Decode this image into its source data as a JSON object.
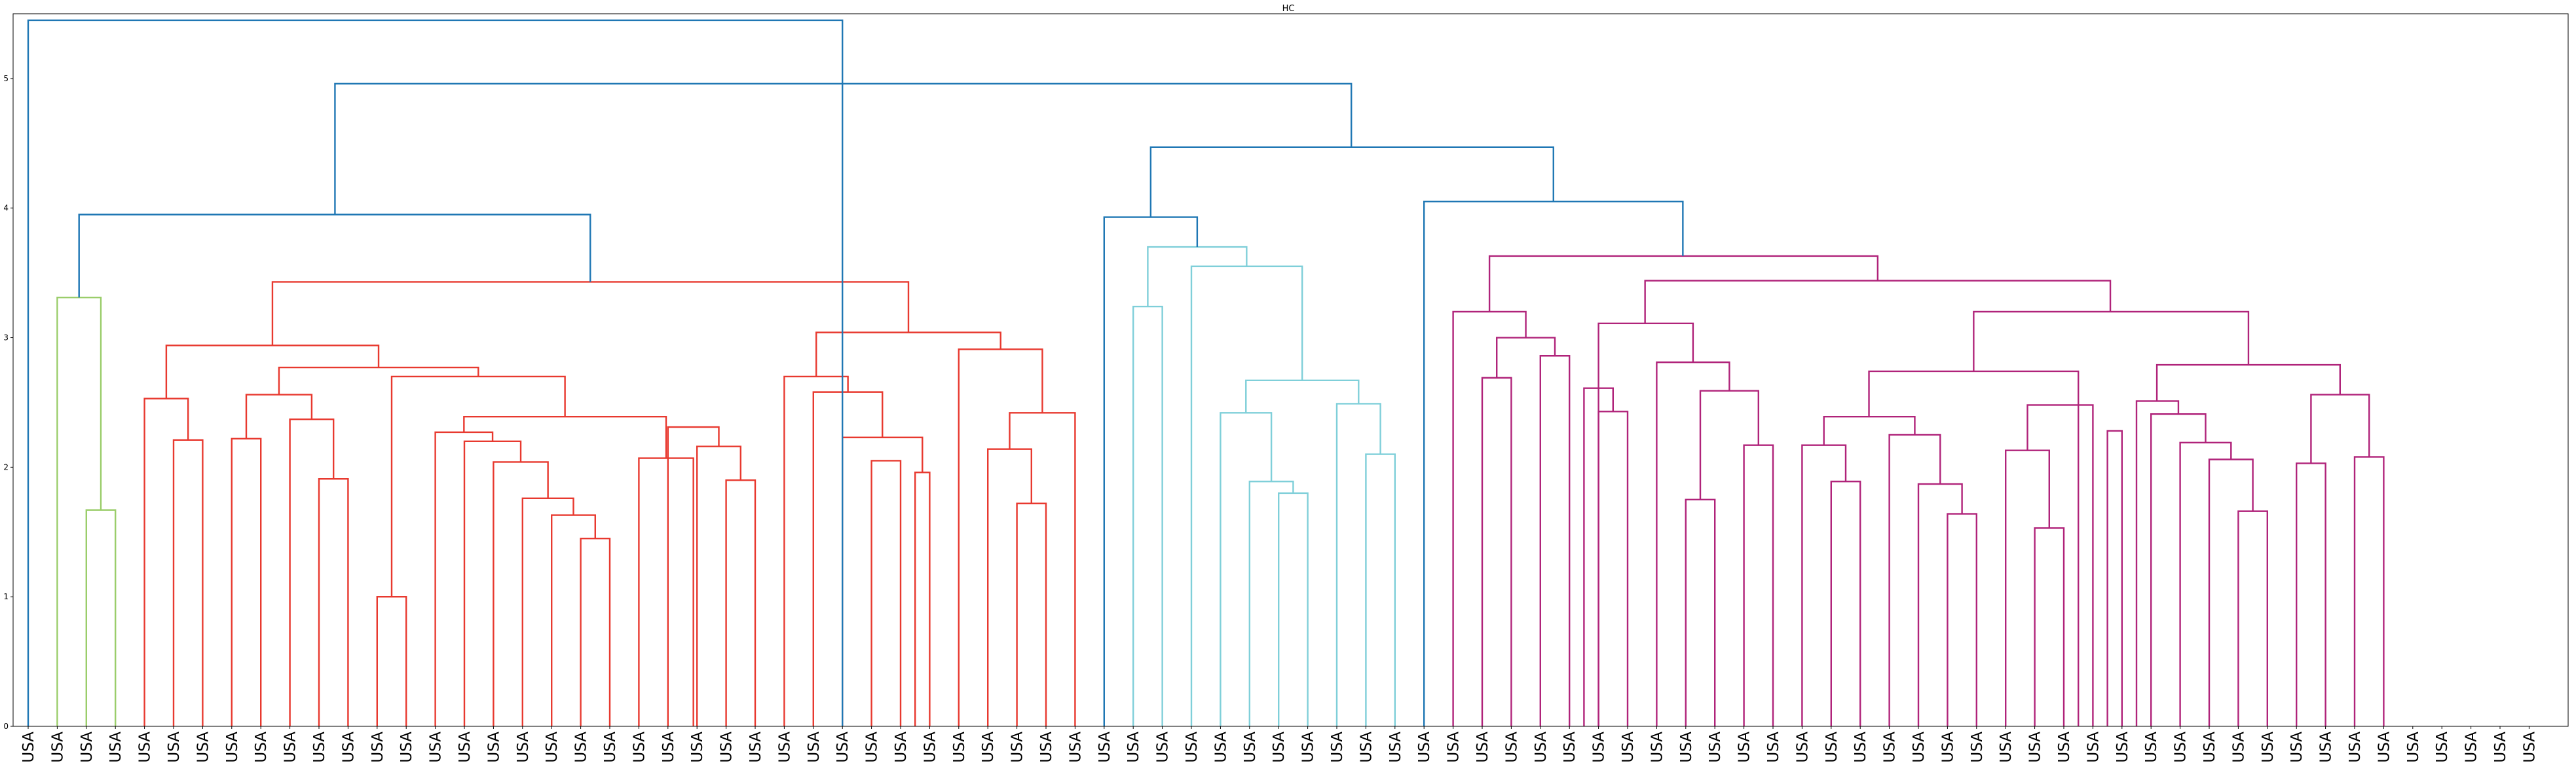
{
  "chart_data": {
    "type": "dendrogram",
    "title": "HC",
    "xlabel": "",
    "ylabel": "",
    "ylim": [
      0,
      5.5
    ],
    "yticks": [
      0,
      1,
      2,
      3,
      4,
      5
    ],
    "grid": false,
    "leaf_label": "USA",
    "leaf_count": 87,
    "colors": {
      "above_threshold": "#1f77b4",
      "cluster_green": "#9acd6a",
      "cluster_red": "#e8392f",
      "cluster_cyan": "#7fcfd9",
      "cluster_magenta": "#b0237a"
    },
    "links": [
      {
        "xs": [
          2,
          3
        ],
        "y": 1.67,
        "c": "cluster_green"
      },
      {
        "xs": [
          1,
          2.5
        ],
        "y": 3.31,
        "c": "cluster_green"
      },
      {
        "xs": [
          5,
          6
        ],
        "y": 2.21,
        "c": "cluster_red"
      },
      {
        "xs": [
          4,
          5.5
        ],
        "y": 2.53,
        "c": "cluster_red"
      },
      {
        "xs": [
          10,
          11
        ],
        "y": 1.91,
        "c": "cluster_red"
      },
      {
        "xs": [
          9,
          10.5
        ],
        "y": 2.37,
        "c": "cluster_red"
      },
      {
        "xs": [
          7,
          8
        ],
        "y": 2.22,
        "c": "cluster_red"
      },
      {
        "xs": [
          7.5,
          9.75
        ],
        "y": 2.56,
        "c": "cluster_red"
      },
      {
        "xs": [
          19,
          20
        ],
        "y": 1.45,
        "c": "cluster_red"
      },
      {
        "xs": [
          18,
          19.5
        ],
        "y": 1.63,
        "c": "cluster_red"
      },
      {
        "xs": [
          17,
          18.75
        ],
        "y": 1.76,
        "c": "cluster_red"
      },
      {
        "xs": [
          16,
          17.875
        ],
        "y": 2.04,
        "c": "cluster_red"
      },
      {
        "xs": [
          15,
          16.9375
        ],
        "y": 2.2,
        "c": "cluster_red"
      },
      {
        "xs": [
          14,
          15.97
        ],
        "y": 2.27,
        "c": "cluster_red"
      },
      {
        "xs": [
          24,
          25
        ],
        "y": 1.9,
        "c": "cluster_red"
      },
      {
        "xs": [
          23,
          24.5
        ],
        "y": 2.16,
        "c": "cluster_red"
      },
      {
        "xs": [
          22,
          23.75
        ],
        "y": 2.31,
        "c": "cluster_red"
      },
      {
        "xs": [
          21,
          22.875
        ],
        "y": 2.07,
        "c": "cluster_red"
      },
      {
        "xs": [
          14.985,
          21.9375
        ],
        "y": 2.39,
        "c": "cluster_red"
      },
      {
        "xs": [
          12,
          13
        ],
        "y": 1.0,
        "c": "cluster_red"
      },
      {
        "xs": [
          12.5,
          18.46
        ],
        "y": 2.7,
        "c": "cluster_red"
      },
      {
        "xs": [
          8.625,
          15.48
        ],
        "y": 2.77,
        "c": "cluster_red"
      },
      {
        "xs": [
          4.75,
          12.05
        ],
        "y": 2.94,
        "c": "cluster_red"
      },
      {
        "xs": [
          29,
          30
        ],
        "y": 2.05,
        "c": "cluster_red"
      },
      {
        "xs": [
          30.5,
          31
        ],
        "y": 1.96,
        "c": "cluster_red"
      },
      {
        "xs": [
          28,
          30.75
        ],
        "y": 2.23,
        "c": "cluster_red"
      },
      {
        "xs": [
          27,
          29.375
        ],
        "y": 2.58,
        "c": "cluster_red"
      },
      {
        "xs": [
          26,
          28.19
        ],
        "y": 2.7,
        "c": "cluster_red"
      },
      {
        "xs": [
          34,
          35
        ],
        "y": 1.72,
        "c": "cluster_red"
      },
      {
        "xs": [
          33,
          34.5
        ],
        "y": 2.14,
        "c": "cluster_red"
      },
      {
        "xs": [
          33.75,
          36
        ],
        "y": 2.42,
        "c": "cluster_red"
      },
      {
        "xs": [
          32,
          34.875
        ],
        "y": 2.91,
        "c": "cluster_red"
      },
      {
        "xs": [
          27.1,
          33.44
        ],
        "y": 3.04,
        "c": "cluster_red"
      },
      {
        "xs": [
          8.4,
          30.27
        ],
        "y": 3.43,
        "c": "cluster_red"
      },
      {
        "xs": [
          1.75,
          19.33
        ],
        "y": 3.95,
        "c": "above_threshold"
      },
      {
        "xs": [
          38,
          39
        ],
        "y": 3.24,
        "c": "cluster_cyan"
      },
      {
        "xs": [
          43,
          44
        ],
        "y": 1.8,
        "c": "cluster_cyan"
      },
      {
        "xs": [
          42,
          43.5
        ],
        "y": 1.89,
        "c": "cluster_cyan"
      },
      {
        "xs": [
          41,
          42.75
        ],
        "y": 2.42,
        "c": "cluster_cyan"
      },
      {
        "xs": [
          46,
          47
        ],
        "y": 2.1,
        "c": "cluster_cyan"
      },
      {
        "xs": [
          45,
          46.5
        ],
        "y": 2.49,
        "c": "cluster_cyan"
      },
      {
        "xs": [
          41.875,
          45.75
        ],
        "y": 2.67,
        "c": "cluster_cyan"
      },
      {
        "xs": [
          40,
          43.81
        ],
        "y": 3.55,
        "c": "cluster_cyan"
      },
      {
        "xs": [
          38.5,
          41.9
        ],
        "y": 3.7,
        "c": "cluster_cyan"
      },
      {
        "xs": [
          37,
          40.2
        ],
        "y": 3.93,
        "c": "above_threshold"
      },
      {
        "xs": [
          50,
          51
        ],
        "y": 2.69,
        "c": "cluster_magenta"
      },
      {
        "xs": [
          52,
          53
        ],
        "y": 2.86,
        "c": "cluster_magenta"
      },
      {
        "xs": [
          50.5,
          52.5
        ],
        "y": 3.0,
        "c": "cluster_magenta"
      },
      {
        "xs": [
          49,
          51.5
        ],
        "y": 3.2,
        "c": "cluster_magenta"
      },
      {
        "xs": [
          54,
          55
        ],
        "y": 2.43,
        "c": "cluster_magenta"
      },
      {
        "xs": [
          53.5,
          54.5
        ],
        "y": 2.61,
        "c": "cluster_magenta"
      },
      {
        "xs": [
          57,
          58
        ],
        "y": 1.75,
        "c": "cluster_magenta"
      },
      {
        "xs": [
          59,
          60
        ],
        "y": 2.17,
        "c": "cluster_magenta"
      },
      {
        "xs": [
          57.5,
          59.5
        ],
        "y": 2.59,
        "c": "cluster_magenta"
      },
      {
        "xs": [
          56,
          58.5
        ],
        "y": 2.81,
        "c": "cluster_magenta"
      },
      {
        "xs": [
          54,
          57.25
        ],
        "y": 3.11,
        "c": "cluster_magenta"
      },
      {
        "xs": [
          62,
          63
        ],
        "y": 1.89,
        "c": "cluster_magenta"
      },
      {
        "xs": [
          61,
          62.5
        ],
        "y": 2.17,
        "c": "cluster_magenta"
      },
      {
        "xs": [
          66,
          67
        ],
        "y": 1.64,
        "c": "cluster_magenta"
      },
      {
        "xs": [
          65,
          66.5
        ],
        "y": 1.87,
        "c": "cluster_magenta"
      },
      {
        "xs": [
          64,
          65.75
        ],
        "y": 2.25,
        "c": "cluster_magenta"
      },
      {
        "xs": [
          61.75,
          64.875
        ],
        "y": 2.39,
        "c": "cluster_magenta"
      },
      {
        "xs": [
          69,
          70
        ],
        "y": 1.53,
        "c": "cluster_magenta"
      },
      {
        "xs": [
          68,
          69.5
        ],
        "y": 2.13,
        "c": "cluster_magenta"
      },
      {
        "xs": [
          68.75,
          71
        ],
        "y": 2.48,
        "c": "cluster_magenta"
      },
      {
        "xs": [
          71.5,
          72
        ],
        "y": 2.28,
        "c": "cluster_magenta"
      },
      {
        "xs": [
          63.3,
          70.5
        ],
        "y": 2.74,
        "c": "cluster_magenta"
      },
      {
        "xs": [
          76,
          77
        ],
        "y": 1.66,
        "c": "cluster_magenta"
      },
      {
        "xs": [
          75,
          76.5
        ],
        "y": 2.06,
        "c": "cluster_magenta"
      },
      {
        "xs": [
          74,
          75.75
        ],
        "y": 2.19,
        "c": "cluster_magenta"
      },
      {
        "xs": [
          73,
          74.875
        ],
        "y": 2.41,
        "c": "cluster_magenta"
      },
      {
        "xs": [
          72.5,
          73.94
        ],
        "y": 2.51,
        "c": "cluster_magenta"
      },
      {
        "xs": [
          78,
          79
        ],
        "y": 2.03,
        "c": "cluster_magenta"
      },
      {
        "xs": [
          80,
          81
        ],
        "y": 2.08,
        "c": "cluster_magenta"
      },
      {
        "xs": [
          78.5,
          80.5
        ],
        "y": 2.56,
        "c": "cluster_magenta"
      },
      {
        "xs": [
          73.2,
          79.5
        ],
        "y": 2.79,
        "c": "cluster_magenta"
      },
      {
        "xs": [
          66.9,
          76.35
        ],
        "y": 3.2,
        "c": "cluster_magenta"
      },
      {
        "xs": [
          55.6,
          71.6
        ],
        "y": 3.44,
        "c": "cluster_magenta"
      },
      {
        "xs": [
          50.25,
          63.6
        ],
        "y": 3.63,
        "c": "cluster_magenta"
      },
      {
        "xs": [
          48,
          56.9
        ],
        "y": 4.05,
        "c": "above_threshold"
      },
      {
        "xs": [
          38.6,
          52.45
        ],
        "y": 4.47,
        "c": "above_threshold"
      },
      {
        "xs": [
          10.55,
          45.5
        ],
        "y": 4.96,
        "c": "above_threshold"
      },
      {
        "xs": [
          0,
          28.0
        ],
        "y": 5.45,
        "c": "above_threshold"
      }
    ]
  }
}
